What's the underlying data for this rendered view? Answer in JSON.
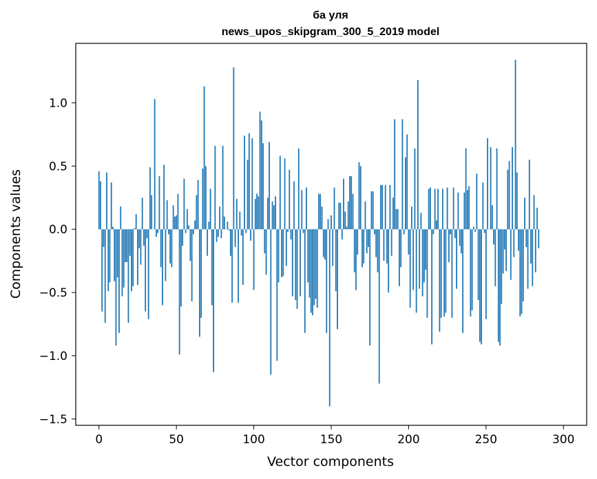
{
  "chart_data": {
    "type": "bar",
    "title": "ба уля",
    "subtitle": "news_upos_skipgram_300_5_2019 model",
    "xlabel": "Vector components",
    "ylabel": "Components values",
    "xlim": [
      -15,
      315
    ],
    "ylim": [
      -1.55,
      1.47
    ],
    "xticks": [
      0,
      50,
      100,
      150,
      200,
      250,
      300
    ],
    "yticks": [
      -1.5,
      -1.0,
      -0.5,
      0.0,
      0.5,
      1.0
    ],
    "ytick_labels": [
      "−1.5",
      "−1.0",
      "−0.5",
      "0.0",
      "0.5",
      "1.0"
    ],
    "bar_color": "#1f77b4",
    "grid": false,
    "values": [
      0.46,
      0.38,
      -0.65,
      -0.14,
      -0.74,
      0.45,
      -0.49,
      -0.42,
      0.37,
      0.02,
      -0.41,
      -0.92,
      -0.38,
      -0.82,
      0.18,
      -0.53,
      -0.46,
      -0.26,
      -0.26,
      -0.74,
      -0.21,
      -0.49,
      -0.45,
      0.01,
      0.12,
      -0.44,
      -0.15,
      -0.28,
      0.25,
      -0.13,
      -0.65,
      -0.07,
      -0.71,
      0.49,
      0.27,
      0.0,
      1.03,
      -0.06,
      -0.03,
      0.42,
      -0.3,
      -0.6,
      0.51,
      -0.41,
      0.23,
      -0.04,
      -0.27,
      -0.3,
      0.19,
      0.1,
      0.11,
      0.28,
      -0.99,
      -0.61,
      -0.13,
      0.4,
      -0.03,
      0.16,
      0.03,
      -0.25,
      -0.57,
      -0.04,
      0.07,
      0.27,
      0.39,
      -0.85,
      -0.7,
      0.48,
      1.13,
      0.5,
      -0.21,
      0.06,
      0.32,
      -0.6,
      -1.13,
      0.66,
      -0.1,
      -0.06,
      0.18,
      -0.07,
      0.66,
      0.1,
      0.0,
      0.06,
      -0.01,
      -0.21,
      -0.58,
      1.28,
      -0.14,
      0.24,
      -0.58,
      0.14,
      -0.05,
      -0.44,
      0.74,
      -0.03,
      0.55,
      0.76,
      -0.09,
      0.72,
      -0.48,
      0.24,
      0.28,
      0.26,
      0.93,
      0.86,
      0.68,
      -0.19,
      -0.36,
      0.25,
      0.69,
      -1.15,
      0.22,
      0.19,
      0.26,
      -1.04,
      -0.42,
      0.58,
      -0.38,
      -0.37,
      0.56,
      -0.29,
      -0.02,
      0.47,
      -0.08,
      -0.53,
      0.38,
      -0.56,
      -0.63,
      0.64,
      -0.53,
      0.31,
      -0.03,
      -0.82,
      0.33,
      -0.42,
      -0.54,
      -0.66,
      -0.68,
      -0.6,
      -0.55,
      -0.62,
      0.28,
      0.28,
      0.18,
      -0.22,
      -0.24,
      -0.82,
      0.08,
      -1.4,
      0.11,
      -0.29,
      0.33,
      -0.49,
      -0.79,
      0.21,
      0.21,
      -0.08,
      0.4,
      0.14,
      0.02,
      0.22,
      0.42,
      0.42,
      0.28,
      -0.34,
      -0.48,
      -0.2,
      0.53,
      0.5,
      -0.3,
      -0.27,
      0.22,
      -0.19,
      -0.14,
      -0.92,
      0.3,
      0.3,
      -0.04,
      -0.22,
      -0.34,
      -1.22,
      0.35,
      0.35,
      -0.25,
      0.35,
      -0.27,
      -0.5,
      0.35,
      -0.21,
      0.25,
      0.87,
      0.16,
      0.16,
      -0.45,
      -0.3,
      0.87,
      -0.04,
      0.57,
      0.75,
      -0.2,
      -0.62,
      0.18,
      -0.48,
      0.64,
      -0.66,
      1.18,
      -0.47,
      0.13,
      -0.53,
      -0.42,
      -0.32,
      -0.7,
      0.32,
      0.33,
      -0.91,
      -0.04,
      0.32,
      0.07,
      0.32,
      -0.81,
      -0.7,
      0.32,
      -0.69,
      -0.66,
      0.33,
      -0.26,
      -0.04,
      -0.7,
      0.33,
      -0.07,
      -0.47,
      0.29,
      -0.13,
      -0.19,
      -0.82,
      0.29,
      0.64,
      0.31,
      0.34,
      -0.69,
      -0.64,
      0.02,
      -0.02,
      0.44,
      -0.56,
      -0.89,
      -0.91,
      0.37,
      -0.03,
      -0.71,
      0.72,
      0.0,
      0.65,
      0.19,
      -0.12,
      -0.45,
      0.64,
      -0.89,
      -0.92,
      -0.59,
      -0.35,
      -0.16,
      -0.33,
      0.47,
      0.54,
      -0.4,
      0.65,
      -0.22,
      1.34,
      0.45,
      -0.17,
      -0.69,
      -0.67,
      -0.57,
      0.25,
      -0.14,
      -0.47,
      0.55,
      -0.27,
      -0.45,
      0.27,
      -0.34,
      0.17,
      -0.15
    ]
  }
}
